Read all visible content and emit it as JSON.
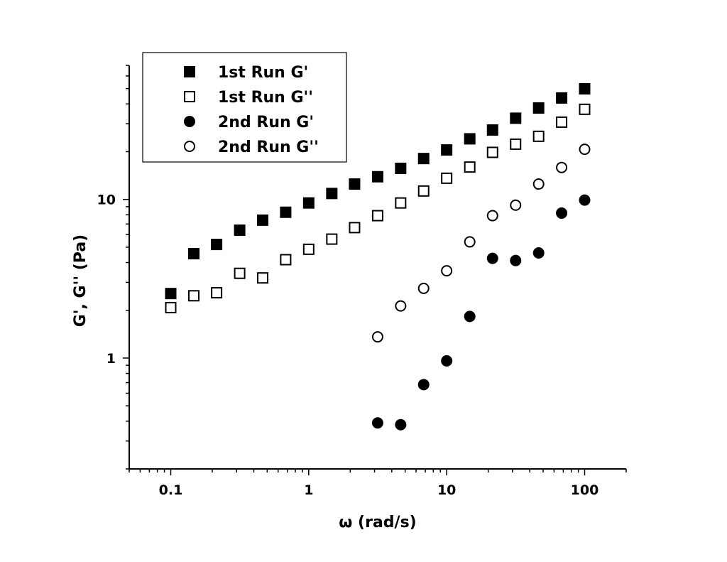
{
  "chart_data": {
    "type": "scatter",
    "title": "",
    "xlabel": "ω (rad/s)",
    "ylabel": "G', G'' (Pa)",
    "x_scale": "log",
    "y_scale": "log",
    "xlim": [
      0.05,
      200
    ],
    "ylim": [
      0.2,
      70
    ],
    "x_tick_labels": [
      "0.1",
      "1",
      "10",
      "100"
    ],
    "y_tick_labels": [
      "1",
      "10"
    ],
    "grid": false,
    "legend_position": "top-left",
    "series": [
      {
        "name": "1st Run G'",
        "marker": "square",
        "filled": true,
        "x": [
          0.1,
          0.147,
          0.215,
          0.316,
          0.464,
          0.681,
          1.0,
          1.47,
          2.15,
          3.16,
          4.64,
          6.81,
          10.0,
          14.7,
          21.5,
          31.6,
          46.4,
          68.1,
          100.0
        ],
        "y": [
          2.55,
          4.55,
          5.2,
          6.4,
          7.4,
          8.3,
          9.5,
          10.9,
          12.5,
          13.9,
          15.7,
          18.1,
          20.5,
          24.1,
          27.4,
          32.5,
          37.7,
          43.6,
          49.8
        ]
      },
      {
        "name": "1st Run G''",
        "marker": "square",
        "filled": false,
        "x": [
          0.1,
          0.147,
          0.215,
          0.316,
          0.464,
          0.681,
          1.0,
          1.47,
          2.15,
          3.16,
          4.64,
          6.81,
          10.0,
          14.7,
          21.5,
          31.6,
          46.4,
          68.1,
          100.0
        ],
        "y": [
          2.08,
          2.47,
          2.58,
          3.42,
          3.2,
          4.17,
          4.85,
          5.62,
          6.64,
          7.9,
          9.5,
          11.3,
          13.6,
          16.0,
          19.8,
          22.3,
          25.0,
          30.7,
          37.0
        ]
      },
      {
        "name": "2nd Run G'",
        "marker": "circle",
        "filled": true,
        "x": [
          3.16,
          4.64,
          6.81,
          10.0,
          14.7,
          21.5,
          31.6,
          46.4,
          68.1,
          100.0
        ],
        "y": [
          0.39,
          0.38,
          0.68,
          0.96,
          1.83,
          4.25,
          4.12,
          4.6,
          8.2,
          9.9
        ]
      },
      {
        "name": "2nd Run G''",
        "marker": "circle",
        "filled": false,
        "x": [
          3.16,
          4.64,
          6.81,
          10.0,
          14.7,
          21.5,
          31.6,
          46.4,
          68.1,
          100.0
        ],
        "y": [
          1.36,
          2.13,
          2.75,
          3.55,
          5.4,
          7.9,
          9.2,
          12.5,
          15.9,
          20.7
        ]
      }
    ]
  }
}
